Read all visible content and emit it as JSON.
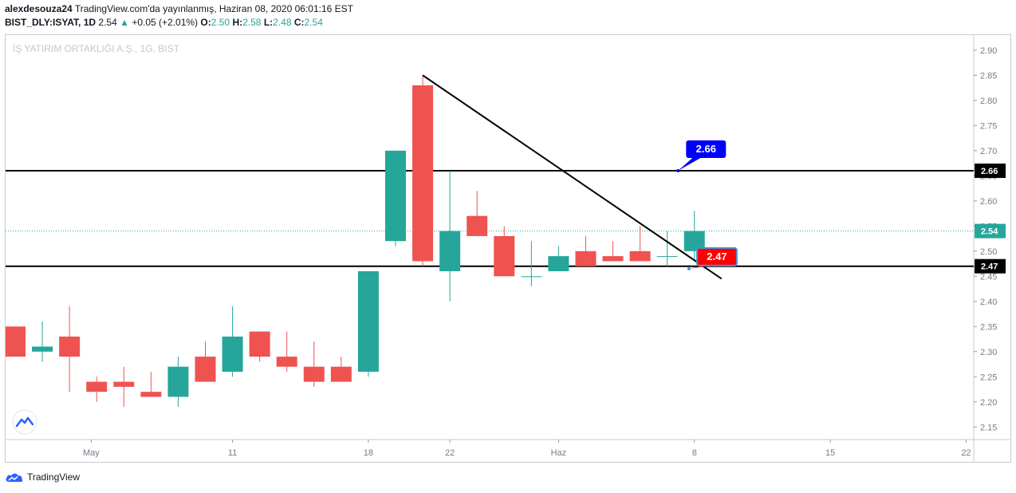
{
  "header": {
    "user": "alexdesouza24",
    "published": "TradingView.com'da yayınlanmış, Haziran 08, 2020 06:01:16 EST",
    "symbol": "BIST_DLY:ISYAT, 1D",
    "last": "2.54",
    "change_arrow": "▲",
    "change": "+0.05 (+2.01%)",
    "o_label": "O:",
    "o": "2.50",
    "h_label": "H:",
    "h": "2.58",
    "l_label": "L:",
    "l": "2.48",
    "c_label": "C:",
    "c": "2.54"
  },
  "footer": {
    "brand": "TradingView"
  },
  "colors": {
    "up": "#26a69a",
    "down": "#ef5350",
    "callout_high": "#0000ff",
    "callout_low": "#ff0000",
    "last_line": "#26a69a"
  },
  "chart_data": {
    "type": "candlestick",
    "watermark": "İŞ YATIRIM ORTAKLIĞI A.Ş., 1G, BIST",
    "x_ticks": [
      {
        "label": "May",
        "i": 2.8
      },
      {
        "label": "11",
        "i": 8
      },
      {
        "label": "18",
        "i": 13
      },
      {
        "label": "22",
        "i": 16
      },
      {
        "label": "Haz",
        "i": 20
      },
      {
        "label": "8",
        "i": 25
      },
      {
        "label": "15",
        "i": 30
      },
      {
        "label": "22",
        "i": 35
      }
    ],
    "y_ticks": [
      "2.15",
      "2.20",
      "2.25",
      "2.30",
      "2.35",
      "2.40",
      "2.45",
      "2.50",
      "2.55",
      "2.60",
      "2.65",
      "2.70",
      "2.75",
      "2.80",
      "2.85",
      "2.90"
    ],
    "ylim": [
      2.125,
      2.93
    ],
    "candles": [
      {
        "o": 2.35,
        "h": 2.35,
        "l": 2.29,
        "c": 2.29
      },
      {
        "o": 2.3,
        "h": 2.36,
        "l": 2.28,
        "c": 2.31
      },
      {
        "o": 2.33,
        "h": 2.39,
        "l": 2.22,
        "c": 2.29
      },
      {
        "o": 2.24,
        "h": 2.25,
        "l": 2.2,
        "c": 2.22
      },
      {
        "o": 2.24,
        "h": 2.27,
        "l": 2.19,
        "c": 2.23
      },
      {
        "o": 2.22,
        "h": 2.26,
        "l": 2.21,
        "c": 2.21
      },
      {
        "o": 2.21,
        "h": 2.29,
        "l": 2.19,
        "c": 2.27
      },
      {
        "o": 2.29,
        "h": 2.32,
        "l": 2.24,
        "c": 2.24
      },
      {
        "o": 2.26,
        "h": 2.39,
        "l": 2.25,
        "c": 2.33
      },
      {
        "o": 2.34,
        "h": 2.34,
        "l": 2.28,
        "c": 2.29
      },
      {
        "o": 2.29,
        "h": 2.34,
        "l": 2.26,
        "c": 2.27
      },
      {
        "o": 2.27,
        "h": 2.32,
        "l": 2.23,
        "c": 2.24
      },
      {
        "o": 2.27,
        "h": 2.29,
        "l": 2.24,
        "c": 2.24
      },
      {
        "o": 2.26,
        "h": 2.46,
        "l": 2.25,
        "c": 2.46
      },
      {
        "o": 2.52,
        "h": 2.7,
        "l": 2.51,
        "c": 2.7
      },
      {
        "o": 2.83,
        "h": 2.85,
        "l": 2.47,
        "c": 2.48
      },
      {
        "o": 2.46,
        "h": 2.66,
        "l": 2.4,
        "c": 2.54
      },
      {
        "o": 2.57,
        "h": 2.62,
        "l": 2.53,
        "c": 2.53
      },
      {
        "o": 2.53,
        "h": 2.55,
        "l": 2.45,
        "c": 2.45
      },
      {
        "o": 2.45,
        "h": 2.52,
        "l": 2.43,
        "c": 2.45
      },
      {
        "o": 2.46,
        "h": 2.51,
        "l": 2.46,
        "c": 2.49
      },
      {
        "o": 2.5,
        "h": 2.53,
        "l": 2.47,
        "c": 2.47
      },
      {
        "o": 2.49,
        "h": 2.52,
        "l": 2.48,
        "c": 2.48
      },
      {
        "o": 2.5,
        "h": 2.55,
        "l": 2.48,
        "c": 2.48
      },
      {
        "o": 2.49,
        "h": 2.54,
        "l": 2.47,
        "c": 2.49
      },
      {
        "o": 2.5,
        "h": 2.58,
        "l": 2.48,
        "c": 2.54
      }
    ],
    "horizontal_levels": [
      {
        "value": 2.66,
        "label": "2.66"
      },
      {
        "value": 2.47,
        "label": "2.47"
      }
    ],
    "last_price": {
      "value": 2.54,
      "label": "2.54"
    },
    "trendline": {
      "from": {
        "i": 15,
        "v": 2.85
      },
      "to": {
        "i": 26,
        "v": 2.445
      }
    },
    "callouts": [
      {
        "label": "2.66",
        "i": 24.4,
        "v": 2.66,
        "color": "#0000ff"
      },
      {
        "label": "2.47",
        "i": 24.8,
        "v": 2.465,
        "color": "#ff0000"
      }
    ]
  }
}
